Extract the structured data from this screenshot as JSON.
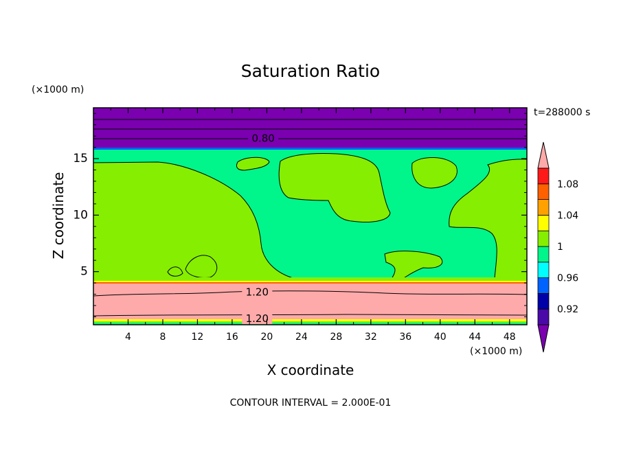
{
  "chart_data": {
    "type": "heatmap",
    "title": "Saturation Ratio",
    "xlabel": "X coordinate",
    "ylabel": "Z coordinate",
    "x_unit": "(×1000 m)",
    "z_unit": "(×1000 m)",
    "time_label": "t=288000 s",
    "footer": "CONTOUR INTERVAL = 2.000E-01",
    "xlim": [
      0,
      50
    ],
    "ylim": [
      0.3,
      19.5
    ],
    "x_ticks": [
      "4",
      "8",
      "12",
      "16",
      "20",
      "24",
      "28",
      "32",
      "36",
      "40",
      "44",
      "48"
    ],
    "y_ticks": [
      "5",
      "10",
      "15"
    ],
    "colorbar": {
      "levels": [
        0.9,
        0.92,
        0.94,
        0.96,
        0.98,
        1.0,
        1.02,
        1.04,
        1.06,
        1.08,
        1.1
      ],
      "labels": [
        "0.92",
        "0.96",
        "1",
        "1.04",
        "1.08"
      ],
      "colors": [
        "#4a0aa8",
        "#0000a8",
        "#0063ff",
        "#00ffff",
        "#00f58a",
        "#86ee00",
        "#ffff00",
        "#ffa200",
        "#ff6000",
        "#ff1a1a"
      ],
      "under_color": "#7a00b0",
      "over_color": "#ffaaaa"
    },
    "contour_labels": [
      {
        "text": "0.80",
        "x": 18.0,
        "z": 16.8
      },
      {
        "text": "1.20",
        "x": 17.3,
        "z": 3.2
      },
      {
        "text": "1.20",
        "x": 17.3,
        "z": 0.85
      }
    ],
    "regions": [
      {
        "z_range": [
          16.0,
          19.5
        ],
        "value": "< 0.90",
        "color": "#7a00b0"
      },
      {
        "z_range": [
          4.0,
          16.0
        ],
        "value": "0.98 – 1.02",
        "colors": [
          "#00f58a",
          "#86ee00"
        ]
      },
      {
        "z_range": [
          0.6,
          3.9
        ],
        "value": "> 1.10",
        "color": "#ffaaaa"
      }
    ]
  }
}
